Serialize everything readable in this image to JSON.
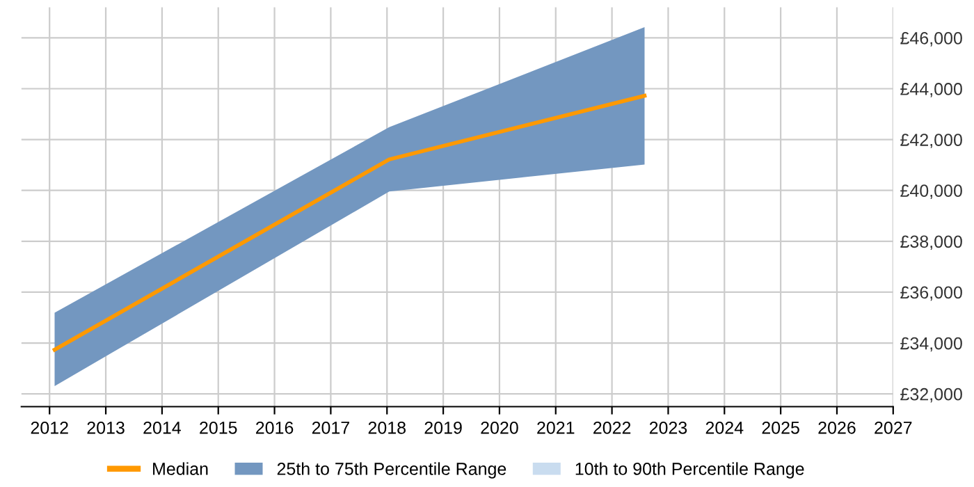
{
  "chart_data": {
    "type": "line",
    "x": [
      2012.09,
      2018.04,
      2022.58
    ],
    "series": [
      {
        "name": "Median",
        "color": "#ff9900",
        "values": [
          33740,
          41220,
          43720
        ],
        "lower": [
          32310,
          39960,
          41020
        ],
        "upper": [
          35190,
          42490,
          46420
        ]
      },
      {
        "name": "25th to 75th Percentile Range",
        "type": "area",
        "color": "#7397c0",
        "values": [
          null,
          null,
          null
        ]
      },
      {
        "name": "10th to 90th Percentile Range",
        "type": "area",
        "color": "#c9dcef",
        "values": [
          null,
          null,
          null
        ]
      }
    ],
    "xlim": [
      2011.5,
      2027
    ],
    "xticks": [
      2012,
      2013,
      2014,
      2015,
      2016,
      2017,
      2018,
      2019,
      2020,
      2021,
      2022,
      2023,
      2024,
      2025,
      2026,
      2027
    ],
    "ylim": [
      31500,
      47200
    ],
    "yticks": [
      {
        "value": 32000,
        "label": "£32,000"
      },
      {
        "value": 34000,
        "label": "£34,000"
      },
      {
        "value": 36000,
        "label": "£36,000"
      },
      {
        "value": 38000,
        "label": "£38,000"
      },
      {
        "value": 40000,
        "label": "£40,000"
      },
      {
        "value": 42000,
        "label": "£42,000"
      },
      {
        "value": 44000,
        "label": "£44,000"
      },
      {
        "value": 46000,
        "label": "£46,000"
      }
    ],
    "grid": true,
    "legend": "bottom",
    "marker": "none",
    "line_style": "solid"
  }
}
